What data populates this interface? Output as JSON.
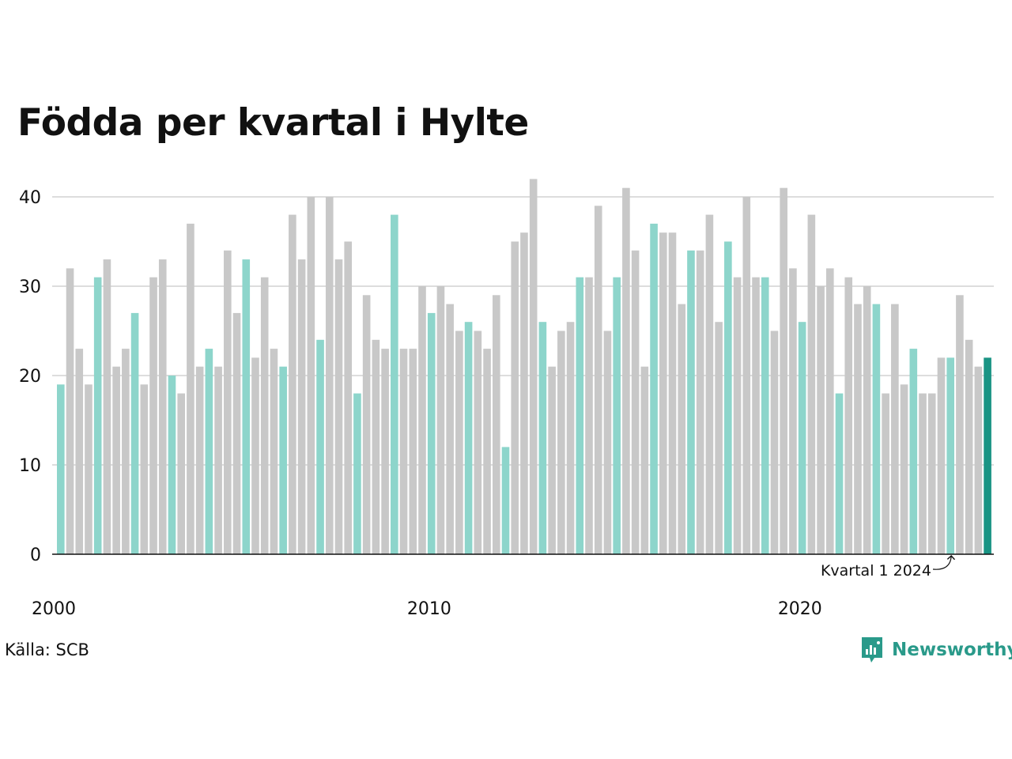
{
  "title": "Födda per kvartal i Hylte",
  "source": "Källa: SCB",
  "brand": "Newsworthy",
  "colors": {
    "highlight_quarter": "#8dd5cb",
    "other_quarter": "#c8c8c8",
    "latest": "#1a9484",
    "grid": "#dddddd",
    "axis": "#111111",
    "brand": "#2a9a8a"
  },
  "chart_data": {
    "type": "bar",
    "title": "Födda per kvartal i Hylte",
    "ylim": [
      0,
      42
    ],
    "yticks": [
      0,
      10,
      20,
      30,
      40
    ],
    "x_tick_labels": [
      "2000",
      "2010",
      "2020"
    ],
    "grid": true,
    "start": "2000 Q1",
    "values": [
      19,
      32,
      23,
      19,
      31,
      33,
      21,
      23,
      27,
      19,
      31,
      33,
      20,
      18,
      37,
      21,
      23,
      21,
      34,
      27,
      33,
      22,
      31,
      23,
      21,
      38,
      33,
      40,
      24,
      40,
      33,
      35,
      18,
      29,
      24,
      23,
      38,
      23,
      23,
      30,
      27,
      30,
      28,
      25,
      26,
      25,
      23,
      29,
      12,
      35,
      36,
      42,
      26,
      21,
      25,
      26,
      31,
      31,
      39,
      25,
      31,
      41,
      34,
      21,
      37,
      36,
      36,
      28,
      34,
      34,
      38,
      26,
      35,
      31,
      40,
      31,
      31,
      25,
      41,
      32,
      26,
      38,
      30,
      32,
      18,
      31,
      28,
      30,
      28,
      18,
      28,
      19,
      23,
      18,
      18,
      22,
      22,
      29,
      24,
      21,
      22
    ],
    "annotation": {
      "text": "Kvartal 1 2024",
      "target": "2024 Q1"
    }
  }
}
